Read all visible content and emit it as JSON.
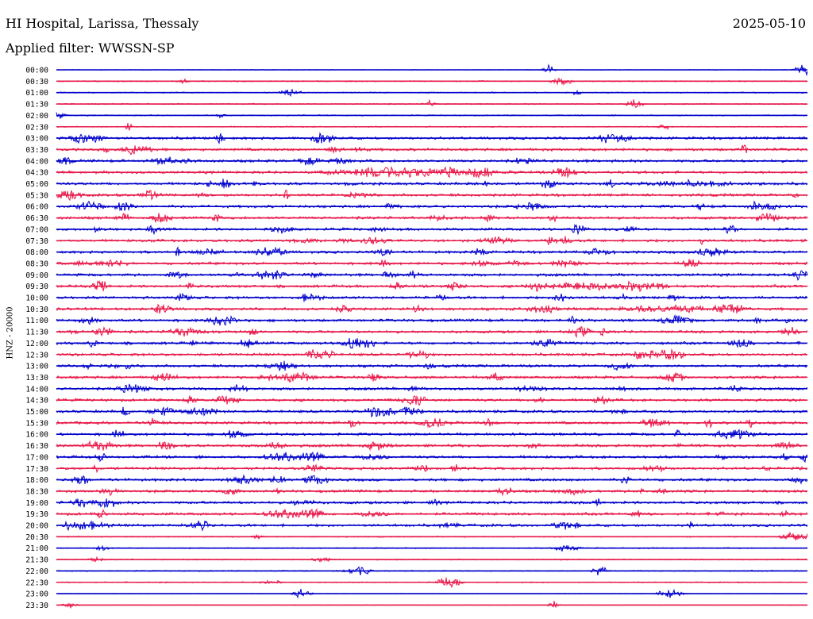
{
  "header": {
    "station": "HI Hospital, Larissa, Thessaly",
    "date": "2025-05-10",
    "filter_label": "Applied filter: WWSSN-SP"
  },
  "chart_data": {
    "type": "line",
    "title": "HI Hospital, Larissa, Thessaly",
    "ylabel": "HNZ - 20000",
    "xlabel": "",
    "y_tick_labels": [
      "00:00",
      "00:30",
      "01:00",
      "01:30",
      "02:00",
      "02:30",
      "03:00",
      "03:30",
      "04:00",
      "04:30",
      "05:00",
      "05:30",
      "06:00",
      "06:30",
      "07:00",
      "07:30",
      "08:00",
      "08:30",
      "09:00",
      "09:30",
      "10:00",
      "10:30",
      "11:00",
      "11:30",
      "12:00",
      "12:30",
      "13:00",
      "13:30",
      "14:00",
      "14:30",
      "15:00",
      "15:30",
      "16:00",
      "16:30",
      "17:00",
      "17:30",
      "18:00",
      "18:30",
      "19:00",
      "19:30",
      "20:00",
      "20:30",
      "21:00",
      "21:30",
      "22:00",
      "22:30",
      "23:00",
      "23:30"
    ],
    "trace_colors": [
      "#0000cc",
      "#e8194a"
    ],
    "grid": false,
    "legend": "none"
  }
}
